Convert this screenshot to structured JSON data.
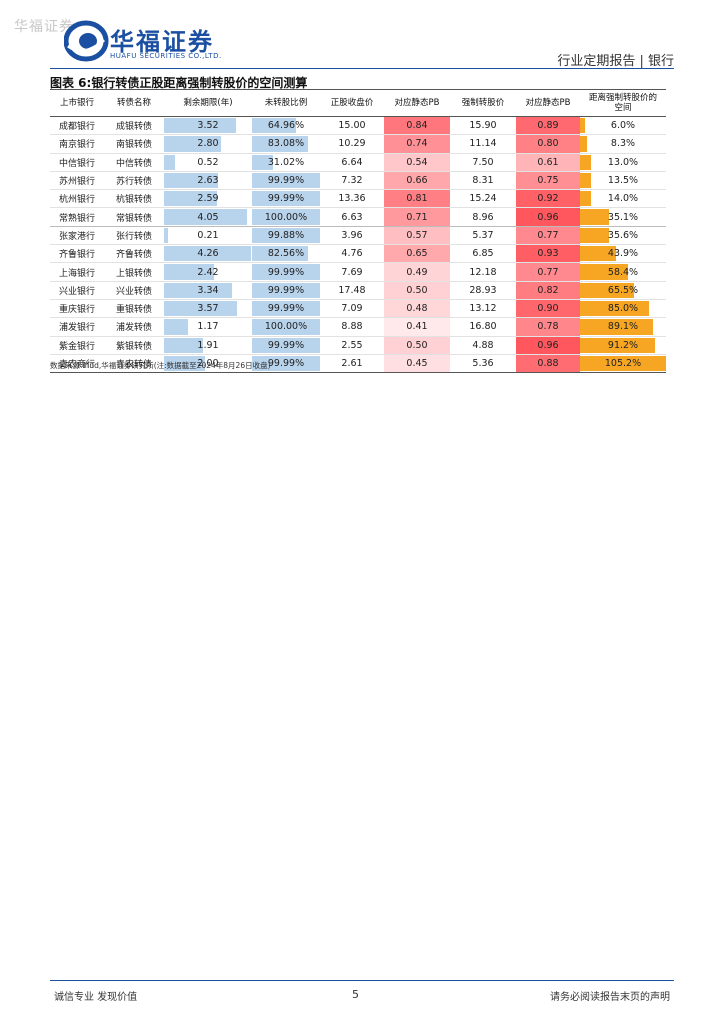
{
  "watermark": "华福证券",
  "logo": {
    "name": "华福证券",
    "subtitle": "HUAFU SECURITIES CO.,LTD."
  },
  "header": {
    "report_type": "行业定期报告 | 银行"
  },
  "figure_title": "图表 6:银行转债正股距离强制转股价的空间测算",
  "columns": [
    "上市银行",
    "转债名称",
    "剩余期限(年)",
    "未转股比例",
    "正股收盘价",
    "对应静态PB",
    "强制转股价",
    "对应静态PB",
    "距离强制转股价的空间"
  ],
  "colors": {
    "brand": "#1b4fa2",
    "blue_bar": "#b8d3ec",
    "orange_bar": "#f6a623",
    "pb_red": "#f0545a"
  },
  "rows": [
    {
      "bank": "成都银行",
      "bond": "成银转债",
      "term": "3.52",
      "term_v": 3.52,
      "unconv": "64.96%",
      "unconv_v": 64.96,
      "close": "15.00",
      "pb1": "0.84",
      "pb1_v": 0.84,
      "force": "15.90",
      "pb2": "0.89",
      "pb2_v": 0.89,
      "space": "6.0%",
      "space_v": 6.0
    },
    {
      "bank": "南京银行",
      "bond": "南银转债",
      "term": "2.80",
      "term_v": 2.8,
      "unconv": "83.08%",
      "unconv_v": 83.08,
      "close": "10.29",
      "pb1": "0.74",
      "pb1_v": 0.74,
      "force": "11.14",
      "pb2": "0.80",
      "pb2_v": 0.8,
      "space": "8.3%",
      "space_v": 8.3
    },
    {
      "bank": "中信银行",
      "bond": "中信转债",
      "term": "0.52",
      "term_v": 0.52,
      "unconv": "31.02%",
      "unconv_v": 31.02,
      "close": "6.64",
      "pb1": "0.54",
      "pb1_v": 0.54,
      "force": "7.50",
      "pb2": "0.61",
      "pb2_v": 0.61,
      "space": "13.0%",
      "space_v": 13.0
    },
    {
      "bank": "苏州银行",
      "bond": "苏行转债",
      "term": "2.63",
      "term_v": 2.63,
      "unconv": "99.99%",
      "unconv_v": 99.99,
      "close": "7.32",
      "pb1": "0.66",
      "pb1_v": 0.66,
      "force": "8.31",
      "pb2": "0.75",
      "pb2_v": 0.75,
      "space": "13.5%",
      "space_v": 13.5
    },
    {
      "bank": "杭州银行",
      "bond": "杭银转债",
      "term": "2.59",
      "term_v": 2.59,
      "unconv": "99.99%",
      "unconv_v": 99.99,
      "close": "13.36",
      "pb1": "0.81",
      "pb1_v": 0.81,
      "force": "15.24",
      "pb2": "0.92",
      "pb2_v": 0.92,
      "space": "14.0%",
      "space_v": 14.0
    },
    {
      "bank": "常熟银行",
      "bond": "常银转债",
      "term": "4.05",
      "term_v": 4.05,
      "unconv": "100.00%",
      "unconv_v": 100.0,
      "close": "6.63",
      "pb1": "0.71",
      "pb1_v": 0.71,
      "force": "8.96",
      "pb2": "0.96",
      "pb2_v": 0.96,
      "space": "35.1%",
      "space_v": 35.1
    },
    {
      "bank": "张家港行",
      "bond": "张行转债",
      "term": "0.21",
      "term_v": 0.21,
      "unconv": "99.88%",
      "unconv_v": 99.88,
      "close": "3.96",
      "pb1": "0.57",
      "pb1_v": 0.57,
      "force": "5.37",
      "pb2": "0.77",
      "pb2_v": 0.77,
      "space": "35.6%",
      "space_v": 35.6
    },
    {
      "bank": "齐鲁银行",
      "bond": "齐鲁转债",
      "term": "4.26",
      "term_v": 4.26,
      "unconv": "82.56%",
      "unconv_v": 82.56,
      "close": "4.76",
      "pb1": "0.65",
      "pb1_v": 0.65,
      "force": "6.85",
      "pb2": "0.93",
      "pb2_v": 0.93,
      "space": "43.9%",
      "space_v": 43.9
    },
    {
      "bank": "上海银行",
      "bond": "上银转债",
      "term": "2.42",
      "term_v": 2.42,
      "unconv": "99.99%",
      "unconv_v": 99.99,
      "close": "7.69",
      "pb1": "0.49",
      "pb1_v": 0.49,
      "force": "12.18",
      "pb2": "0.77",
      "pb2_v": 0.77,
      "space": "58.4%",
      "space_v": 58.4
    },
    {
      "bank": "兴业银行",
      "bond": "兴业转债",
      "term": "3.34",
      "term_v": 3.34,
      "unconv": "99.99%",
      "unconv_v": 99.99,
      "close": "17.48",
      "pb1": "0.50",
      "pb1_v": 0.5,
      "force": "28.93",
      "pb2": "0.82",
      "pb2_v": 0.82,
      "space": "65.5%",
      "space_v": 65.5
    },
    {
      "bank": "重庆银行",
      "bond": "重银转债",
      "term": "3.57",
      "term_v": 3.57,
      "unconv": "99.99%",
      "unconv_v": 99.99,
      "close": "7.09",
      "pb1": "0.48",
      "pb1_v": 0.48,
      "force": "13.12",
      "pb2": "0.90",
      "pb2_v": 0.9,
      "space": "85.0%",
      "space_v": 85.0
    },
    {
      "bank": "浦发银行",
      "bond": "浦发转债",
      "term": "1.17",
      "term_v": 1.17,
      "unconv": "100.00%",
      "unconv_v": 100.0,
      "close": "8.88",
      "pb1": "0.41",
      "pb1_v": 0.41,
      "force": "16.80",
      "pb2": "0.78",
      "pb2_v": 0.78,
      "space": "89.1%",
      "space_v": 89.1
    },
    {
      "bank": "紫金银行",
      "bond": "紫银转债",
      "term": "1.91",
      "term_v": 1.91,
      "unconv": "99.99%",
      "unconv_v": 99.99,
      "close": "2.55",
      "pb1": "0.50",
      "pb1_v": 0.5,
      "force": "4.88",
      "pb2": "0.96",
      "pb2_v": 0.96,
      "space": "91.2%",
      "space_v": 91.2
    },
    {
      "bank": "青农商行",
      "bond": "青农转债",
      "term": "2.00",
      "term_v": 2.0,
      "unconv": "99.99%",
      "unconv_v": 99.99,
      "close": "2.61",
      "pb1": "0.45",
      "pb1_v": 0.45,
      "force": "5.36",
      "pb2": "0.88",
      "pb2_v": 0.88,
      "space": "105.2%",
      "space_v": 105.2
    }
  ],
  "source": "数据来源:ifind,华福证券研究所(注:数据截至2024年8月26日收盘)",
  "footer": {
    "left": "诚信专业  发现价值",
    "page": "5",
    "right": "请务必阅读报告末页的声明"
  }
}
